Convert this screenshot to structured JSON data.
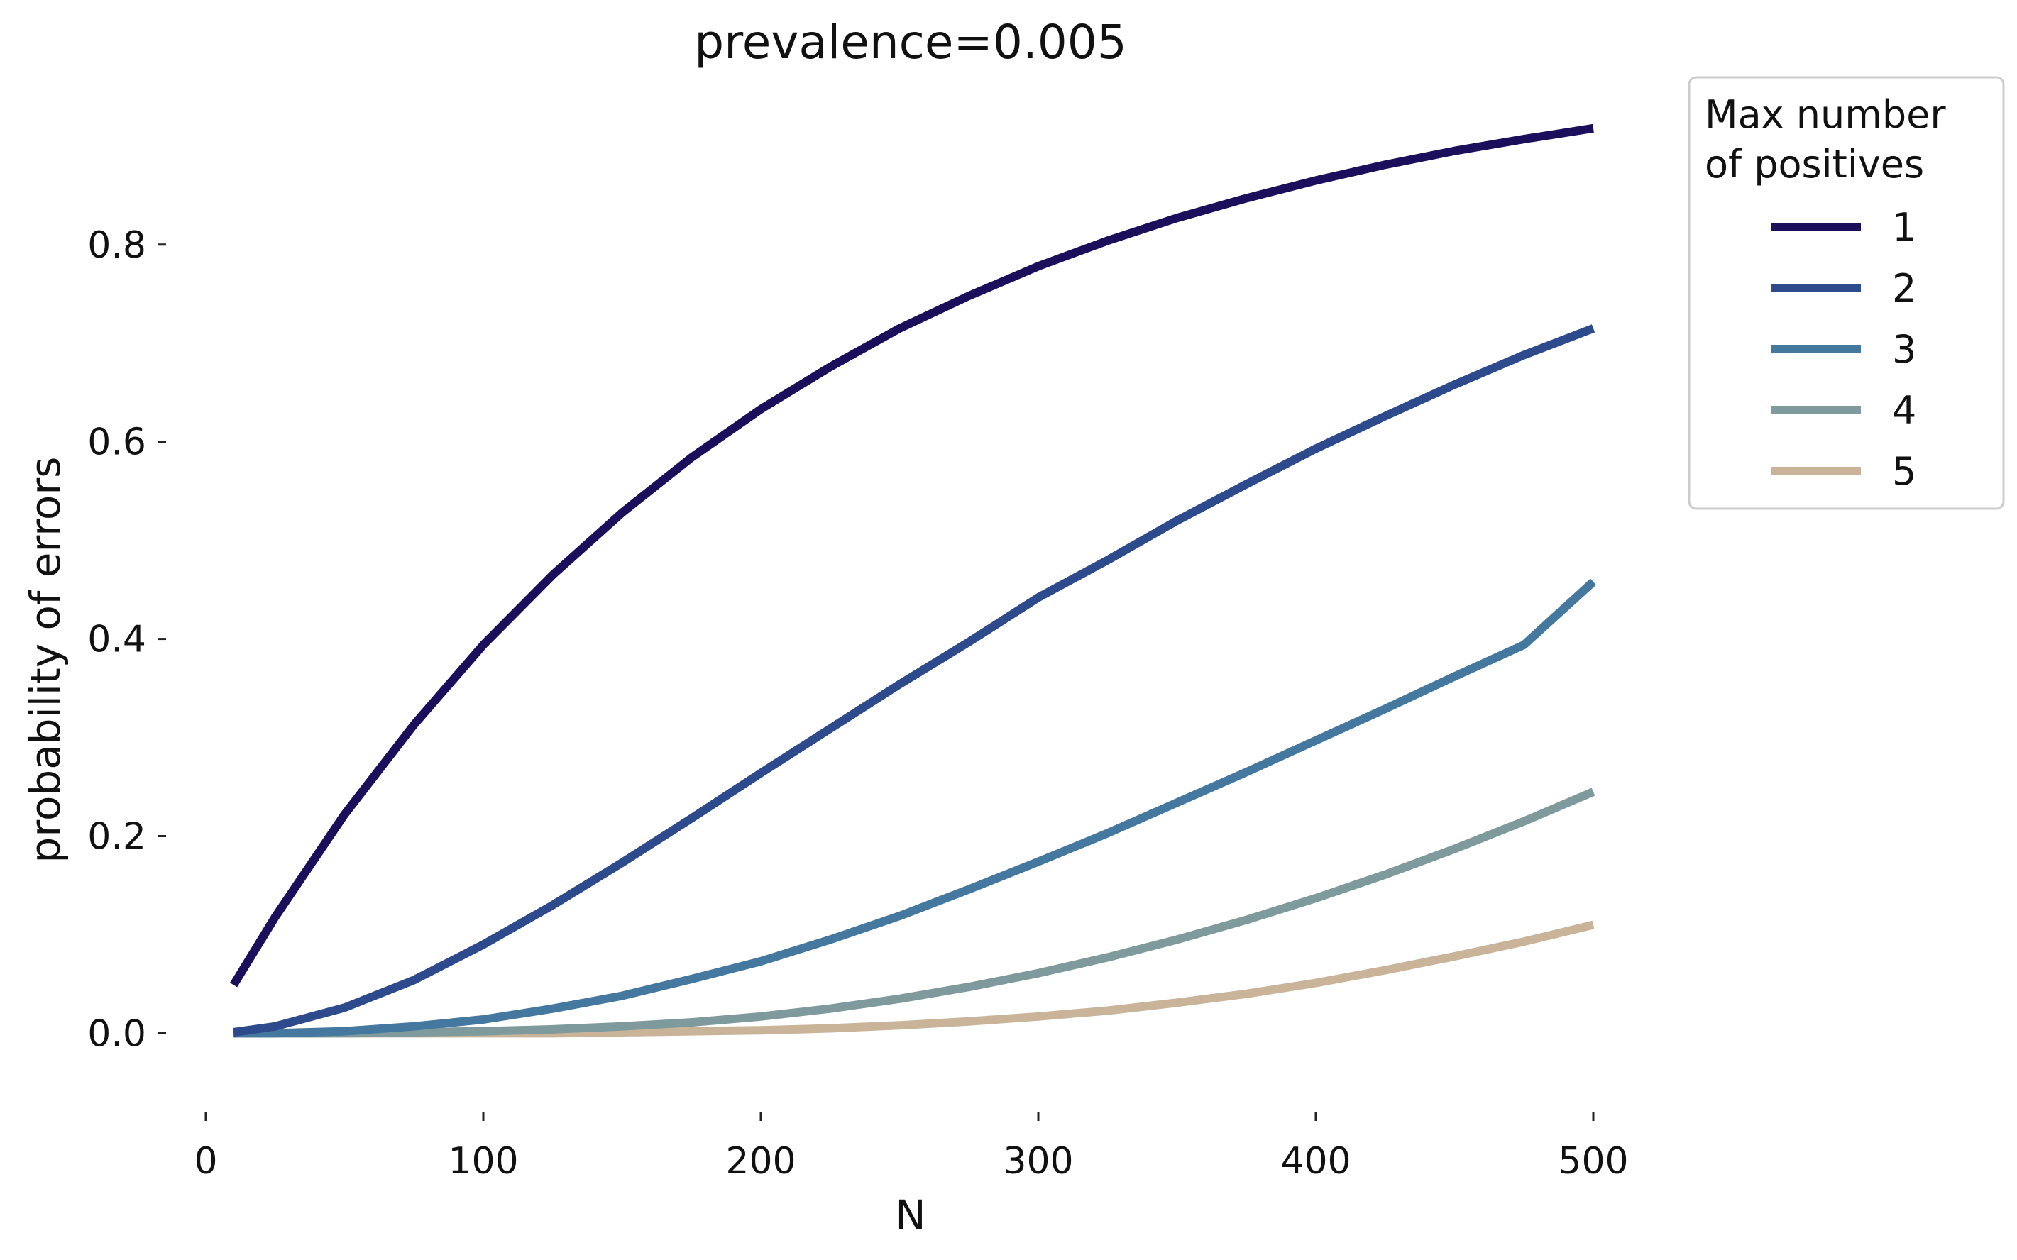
{
  "chart_data": {
    "type": "line",
    "title": "prevalence=0.005",
    "xlabel": "N",
    "ylabel": "probability of errors",
    "xlim": [
      0,
      500
    ],
    "ylim": [
      -0.04,
      0.92
    ],
    "xticks": [
      0,
      100,
      200,
      300,
      400,
      500
    ],
    "xtick_labels": [
      "0",
      "100",
      "200",
      "300",
      "400",
      "500"
    ],
    "yticks": [
      0.0,
      0.2,
      0.4,
      0.6,
      0.8
    ],
    "ytick_labels": [
      "0.0",
      "0.2",
      "0.4",
      "0.6",
      "0.8"
    ],
    "grid": false,
    "legend": {
      "title_line1": "Max number",
      "title_line2": "of positives",
      "placement": "outside-right-top"
    },
    "x": [
      10,
      25,
      50,
      75,
      100,
      125,
      150,
      175,
      200,
      225,
      250,
      275,
      300,
      325,
      350,
      375,
      400,
      425,
      450,
      475,
      500
    ],
    "series": [
      {
        "name": "1",
        "color": "#1b0f5c",
        "values": [
          0.049,
          0.118,
          0.222,
          0.313,
          0.394,
          0.465,
          0.528,
          0.584,
          0.633,
          0.676,
          0.715,
          0.748,
          0.778,
          0.804,
          0.827,
          0.847,
          0.865,
          0.881,
          0.895,
          0.907,
          0.918
        ]
      },
      {
        "name": "2",
        "color": "#2c4a8c",
        "values": [
          0.001,
          0.007,
          0.026,
          0.054,
          0.09,
          0.13,
          0.173,
          0.218,
          0.264,
          0.309,
          0.354,
          0.397,
          0.442,
          0.48,
          0.52,
          0.557,
          0.593,
          0.626,
          0.658,
          0.688,
          0.715
        ]
      },
      {
        "name": "3",
        "color": "#44789f",
        "values": [
          0.0,
          0.0,
          0.002,
          0.007,
          0.014,
          0.025,
          0.038,
          0.055,
          0.073,
          0.095,
          0.119,
          0.146,
          0.174,
          0.203,
          0.234,
          0.265,
          0.297,
          0.329,
          0.362,
          0.394,
          0.458
        ]
      },
      {
        "name": "4",
        "color": "#7e9a9c",
        "values": [
          0.0,
          0.0,
          0.0,
          0.001,
          0.002,
          0.004,
          0.007,
          0.011,
          0.017,
          0.025,
          0.035,
          0.047,
          0.061,
          0.077,
          0.095,
          0.115,
          0.137,
          0.161,
          0.187,
          0.215,
          0.245
        ]
      },
      {
        "name": "5",
        "color": "#c9b49a",
        "values": [
          0.0,
          0.0,
          0.0,
          0.0,
          0.0,
          0.0,
          0.001,
          0.002,
          0.003,
          0.005,
          0.008,
          0.012,
          0.017,
          0.023,
          0.031,
          0.04,
          0.051,
          0.064,
          0.078,
          0.093,
          0.11
        ]
      }
    ]
  }
}
